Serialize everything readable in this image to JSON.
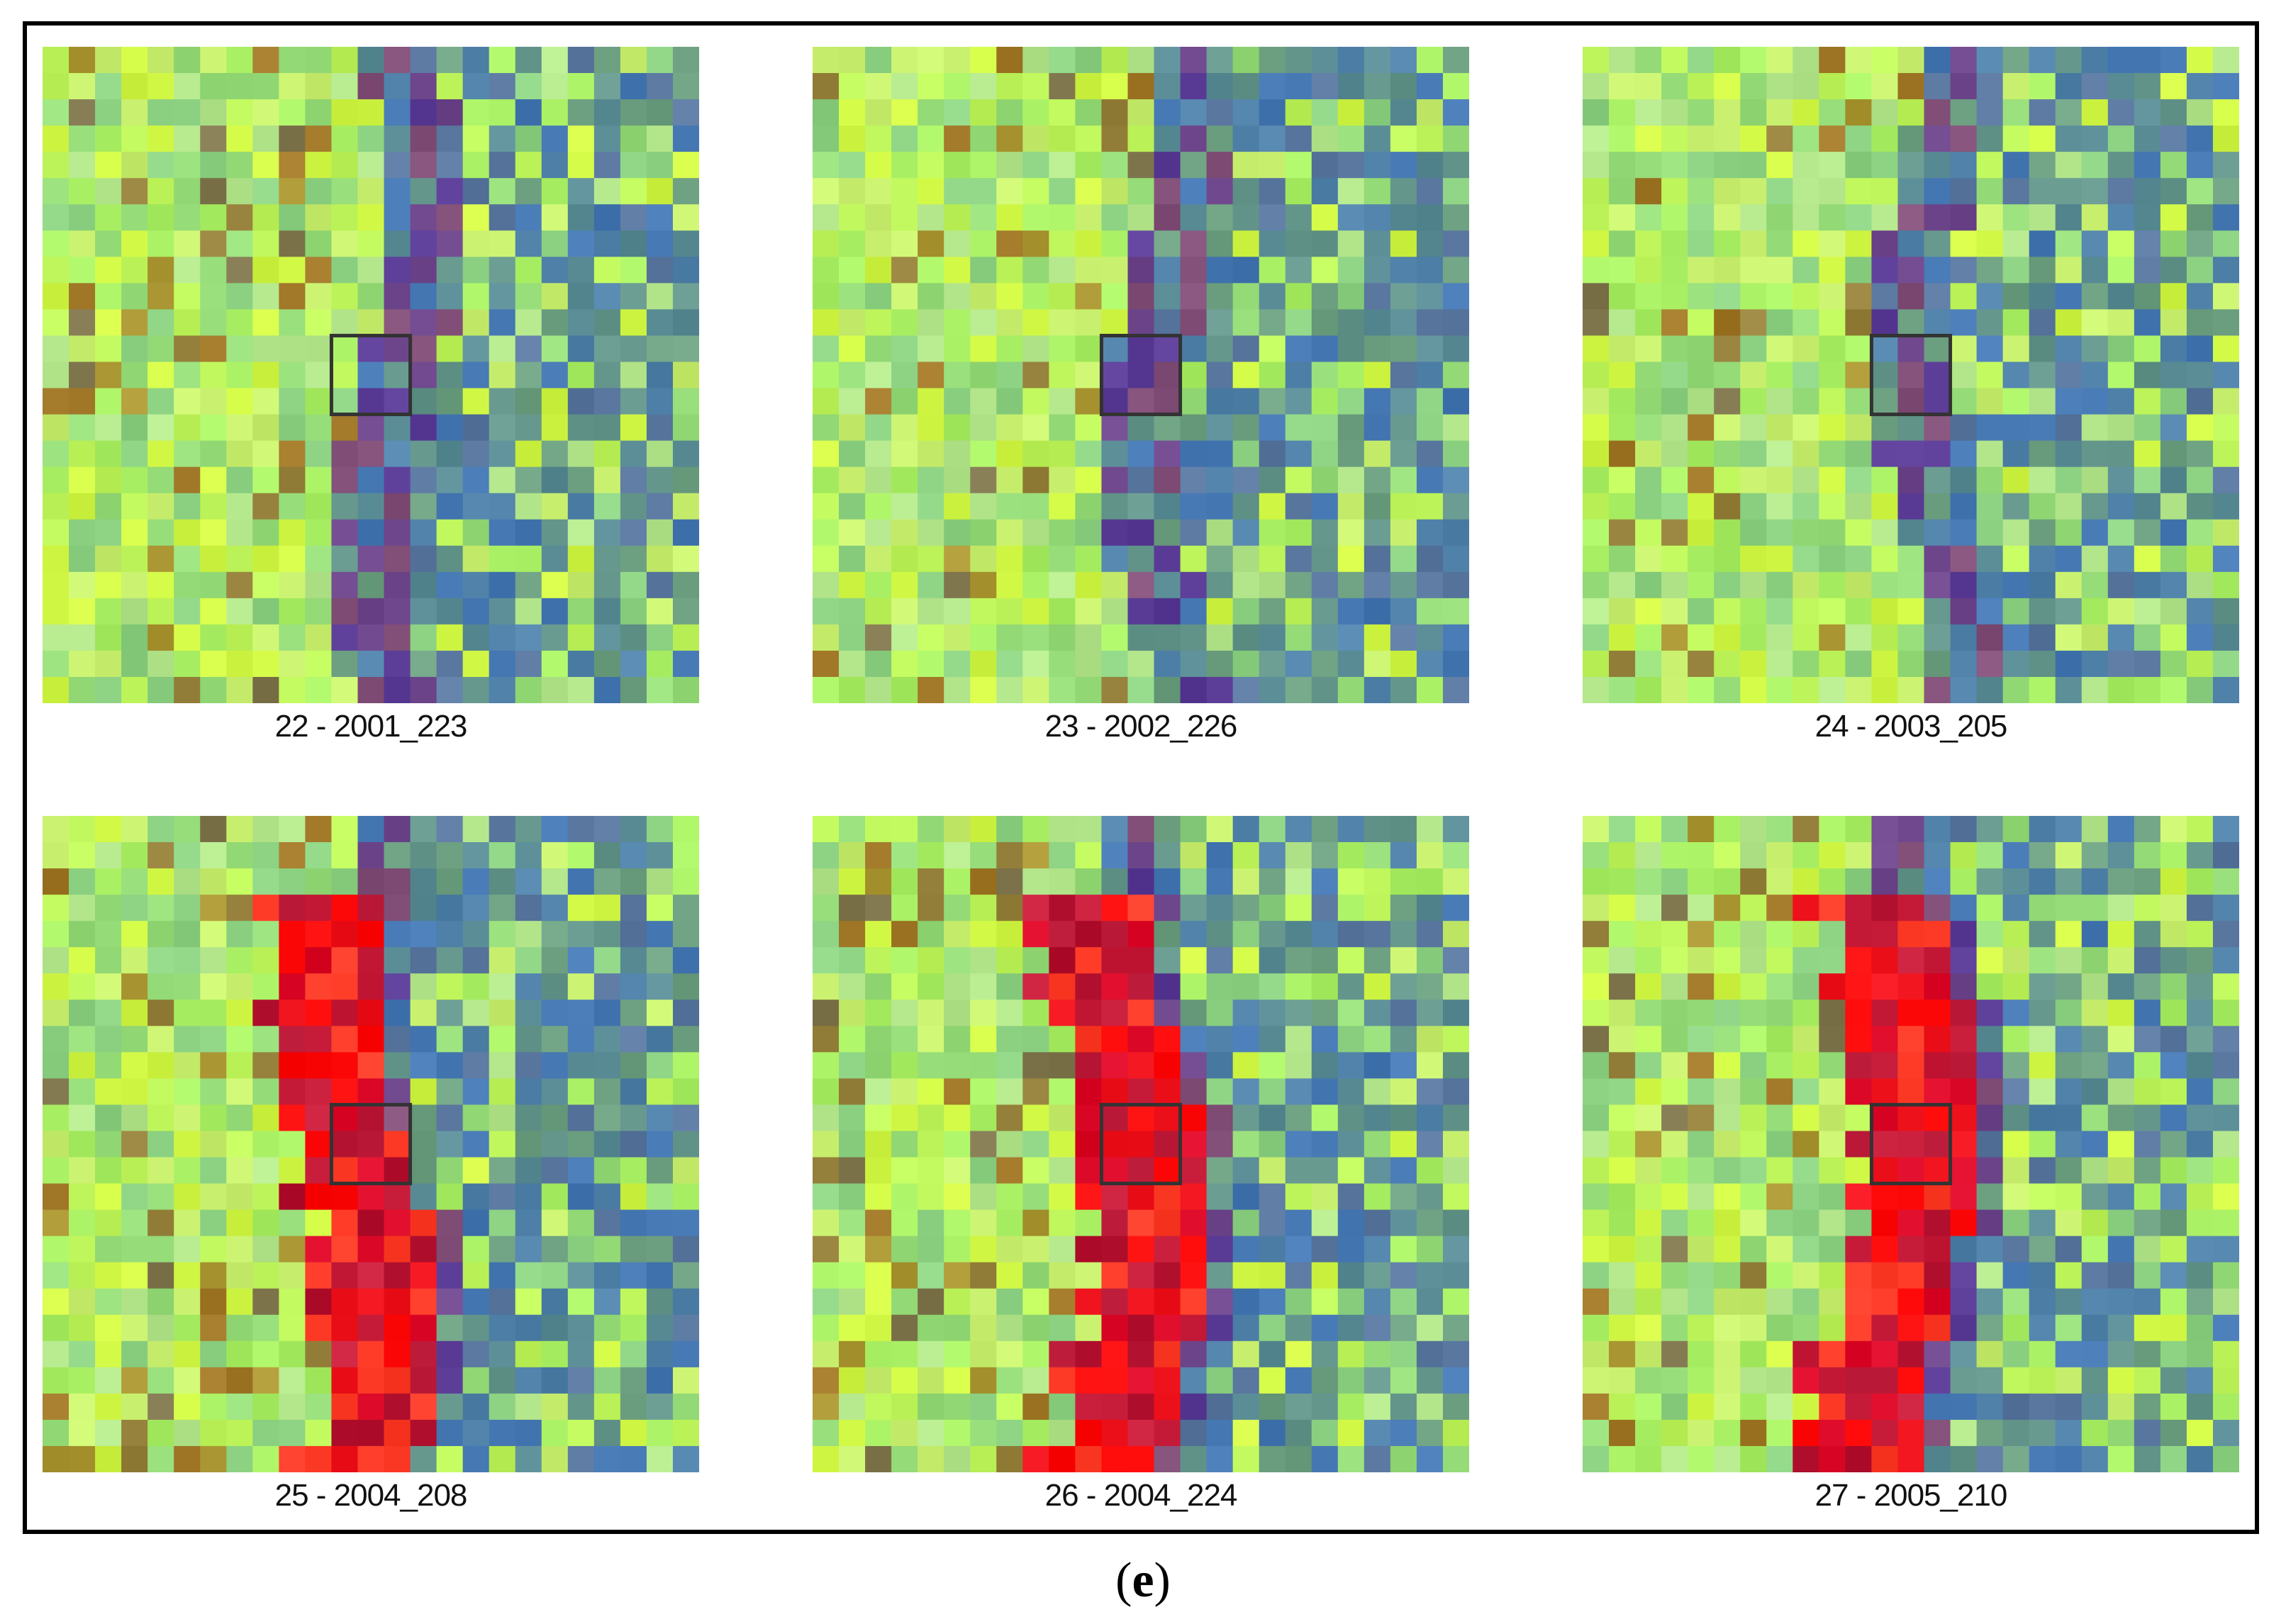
{
  "figure": {
    "panel_letter": "e",
    "panels": [
      {
        "caption": "22 - 2001_223",
        "red_channel": false
      },
      {
        "caption": "23 - 2002_226",
        "red_channel": false
      },
      {
        "caption": "24 - 2003_205",
        "red_channel": false
      },
      {
        "caption": "25 - 2004_208",
        "red_channel": true
      },
      {
        "caption": "26 - 2004_224",
        "red_channel": true
      },
      {
        "caption": "27 - 2005_210",
        "red_channel": true
      }
    ]
  },
  "colors": {
    "border": "#000000",
    "vegetation_bright": "#b8f060",
    "vegetation_yellow": "#e0f840",
    "water_blue": "#4a78b8",
    "soil_brown": "#9a7a30",
    "burn_red": "#ff1010",
    "target_box": "#333333"
  }
}
